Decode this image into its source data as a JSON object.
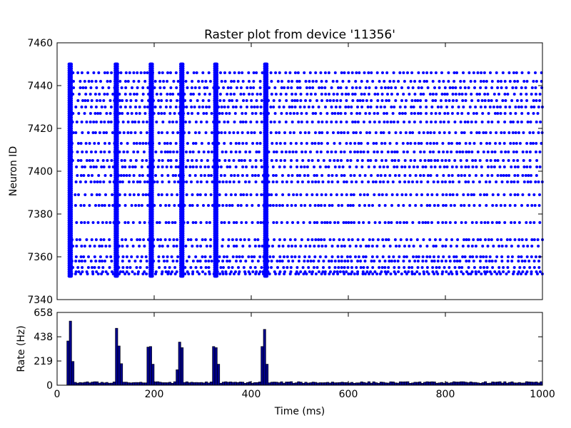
{
  "chart_data": [
    {
      "type": "scatter",
      "title": "Raster plot from device '11356'",
      "ylabel": "Neuron ID",
      "xlim": [
        0,
        1000
      ],
      "ylim": [
        7340,
        7460
      ],
      "yticks": [
        "7340",
        "7360",
        "7380",
        "7400",
        "7420",
        "7440",
        "7460"
      ],
      "marker_color": "#0000ff",
      "neuron_ids": [
        7352,
        7353,
        7355,
        7358,
        7360,
        7365,
        7368,
        7376,
        7384,
        7389,
        7395,
        7398,
        7402,
        7405,
        7409,
        7413,
        7418,
        7423,
        7427,
        7430,
        7433,
        7436,
        7439,
        7442,
        7446
      ],
      "burst_times_ms": [
        27,
        122,
        194,
        257,
        327,
        430
      ],
      "burst_id_range": [
        7351,
        7450
      ],
      "tonic_firing_interval_ms": [
        25,
        1000
      ],
      "legend": "none",
      "grid": false
    },
    {
      "type": "bar",
      "xlabel": "Time (ms)",
      "ylabel": "Rate (Hz)",
      "xlim": [
        0,
        1000
      ],
      "ylim": [
        0,
        658
      ],
      "xticks": [
        "0",
        "200",
        "400",
        "600",
        "800",
        "1000"
      ],
      "yticks": [
        "0",
        "219",
        "438",
        "658"
      ],
      "bar_color": "#00008b",
      "bin_width_ms": 5,
      "baseline_rate_hz": 25,
      "peaks": [
        {
          "x": 22,
          "y": 400
        },
        {
          "x": 27,
          "y": 580
        },
        {
          "x": 32,
          "y": 215
        },
        {
          "x": 117,
          "y": 30
        },
        {
          "x": 122,
          "y": 515
        },
        {
          "x": 127,
          "y": 355
        },
        {
          "x": 132,
          "y": 195
        },
        {
          "x": 187,
          "y": 345
        },
        {
          "x": 192,
          "y": 350
        },
        {
          "x": 197,
          "y": 190
        },
        {
          "x": 247,
          "y": 140
        },
        {
          "x": 252,
          "y": 390
        },
        {
          "x": 257,
          "y": 340
        },
        {
          "x": 262,
          "y": 25
        },
        {
          "x": 322,
          "y": 350
        },
        {
          "x": 327,
          "y": 340
        },
        {
          "x": 332,
          "y": 190
        },
        {
          "x": 422,
          "y": 350
        },
        {
          "x": 427,
          "y": 505
        },
        {
          "x": 432,
          "y": 190
        }
      ],
      "legend": "none",
      "grid": false
    }
  ]
}
